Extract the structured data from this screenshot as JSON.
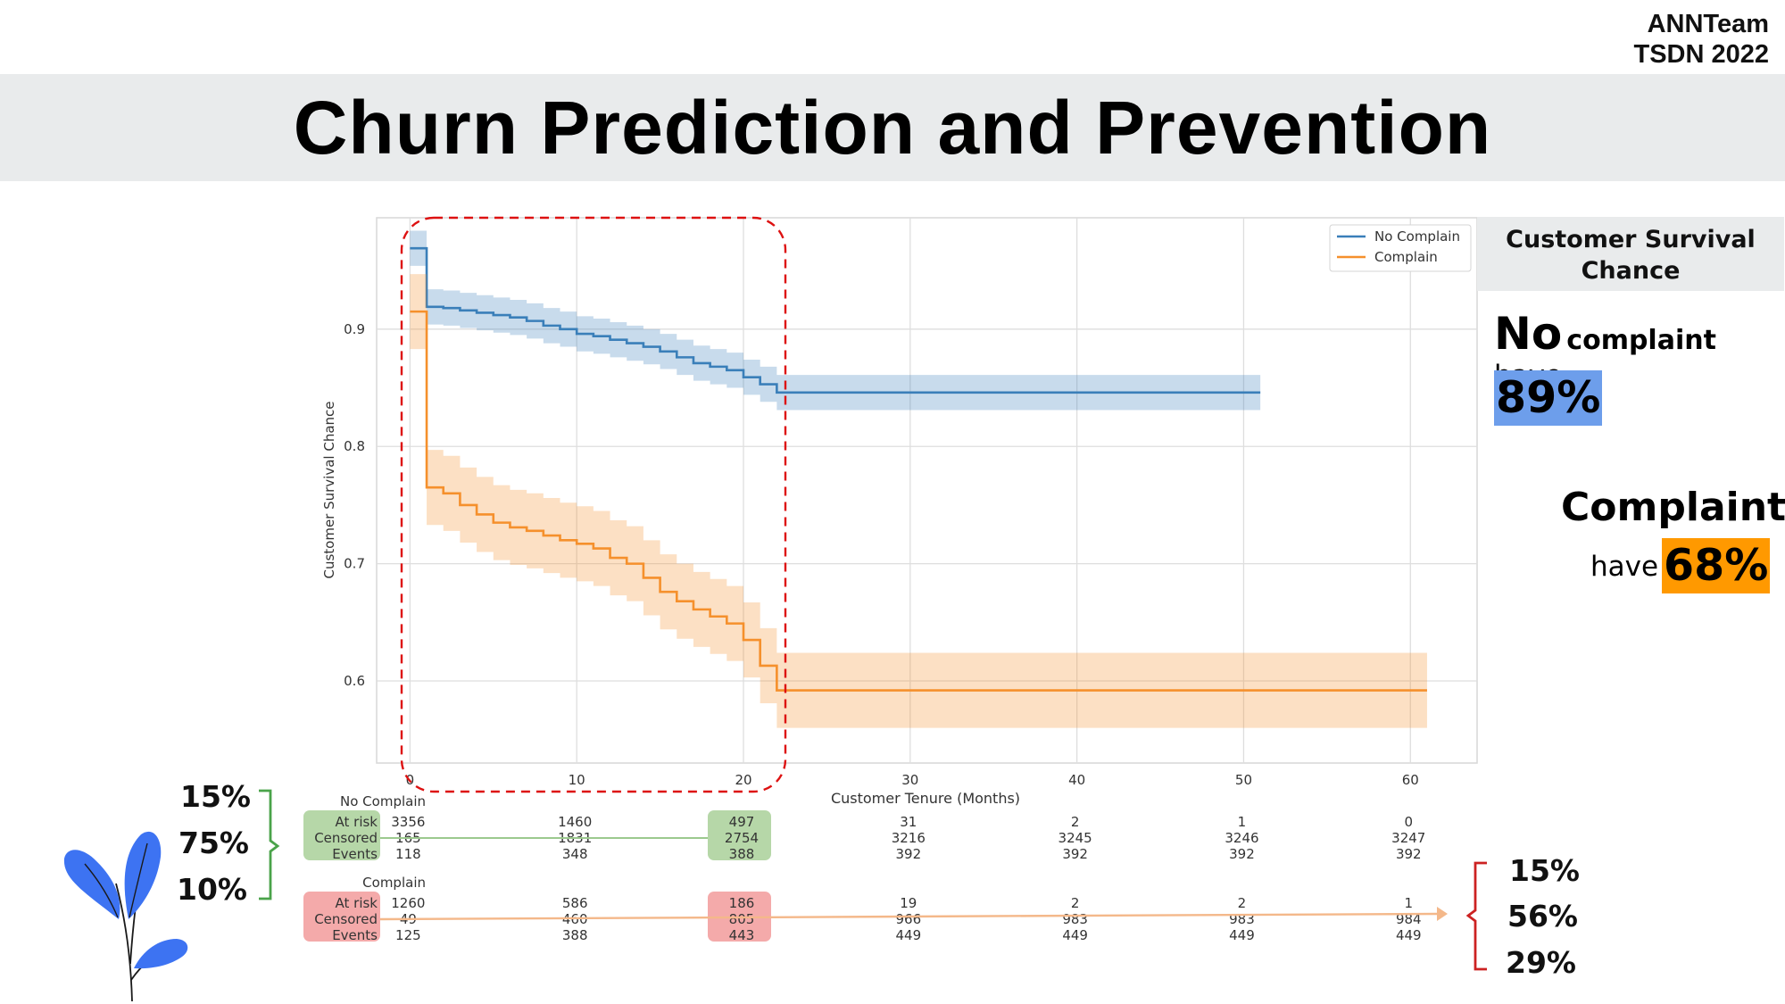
{
  "brand": {
    "line1": "ANNTeam",
    "line2": "TSDN 2022"
  },
  "title": "Churn Prediction and Prevention",
  "side_panel": {
    "header": "Customer Survival Chance",
    "no_complaint": {
      "no": "No",
      "word": "complaint",
      "have": "have",
      "pct": "89%"
    },
    "complaint": {
      "word": "Complaint",
      "have": "have",
      "pct": "68%"
    }
  },
  "left_percentages": [
    "15%",
    "75%",
    "10%"
  ],
  "right_percentages": [
    "15%",
    "56%",
    "29%"
  ],
  "colors": {
    "no_complain": "#3a7fb9",
    "complain": "#f5902c",
    "green_box": "#b6d7a8",
    "red_box": "#f4aaaa",
    "highlight": "#dd1111"
  },
  "chart_data": {
    "type": "line",
    "xlabel": "Customer Tenure (Months)",
    "ylabel": "Customer Survival Chance",
    "xlim": [
      -2,
      64
    ],
    "ylim": [
      0.53,
      0.995
    ],
    "x_ticks": [
      0,
      10,
      20,
      30,
      40,
      50,
      60
    ],
    "y_ticks": [
      0.6,
      0.7,
      0.8,
      0.9
    ],
    "grid": true,
    "legend_position": "top-right",
    "series": [
      {
        "name": "No Complain",
        "points": [
          [
            0,
            0.969
          ],
          [
            1,
            0.919
          ],
          [
            2,
            0.918
          ],
          [
            3,
            0.916
          ],
          [
            4,
            0.914
          ],
          [
            5,
            0.912
          ],
          [
            6,
            0.91
          ],
          [
            7,
            0.907
          ],
          [
            8,
            0.903
          ],
          [
            9,
            0.9
          ],
          [
            10,
            0.896
          ],
          [
            11,
            0.894
          ],
          [
            12,
            0.891
          ],
          [
            13,
            0.888
          ],
          [
            14,
            0.885
          ],
          [
            15,
            0.881
          ],
          [
            16,
            0.876
          ],
          [
            17,
            0.871
          ],
          [
            18,
            0.868
          ],
          [
            19,
            0.865
          ],
          [
            20,
            0.859
          ],
          [
            21,
            0.853
          ],
          [
            22,
            0.846
          ],
          [
            51,
            0.846
          ]
        ],
        "ci": 0.015
      },
      {
        "name": "Complain",
        "points": [
          [
            0,
            0.915
          ],
          [
            1,
            0.765
          ],
          [
            2,
            0.76
          ],
          [
            3,
            0.75
          ],
          [
            4,
            0.742
          ],
          [
            5,
            0.735
          ],
          [
            6,
            0.731
          ],
          [
            7,
            0.728
          ],
          [
            8,
            0.724
          ],
          [
            9,
            0.72
          ],
          [
            10,
            0.717
          ],
          [
            11,
            0.713
          ],
          [
            12,
            0.705
          ],
          [
            13,
            0.7
          ],
          [
            14,
            0.688
          ],
          [
            15,
            0.676
          ],
          [
            16,
            0.668
          ],
          [
            17,
            0.661
          ],
          [
            18,
            0.655
          ],
          [
            19,
            0.649
          ],
          [
            20,
            0.635
          ],
          [
            21,
            0.613
          ],
          [
            22,
            0.592
          ],
          [
            61,
            0.592
          ]
        ],
        "ci": 0.032
      }
    ],
    "at_risk_table": {
      "x_positions": [
        0,
        10,
        20,
        30,
        40,
        50,
        60
      ],
      "groups": [
        {
          "name": "No Complain",
          "rows": [
            {
              "label": "At risk",
              "values": [
                "3356",
                "1460",
                "497",
                "31",
                "2",
                "1",
                "0"
              ]
            },
            {
              "label": "Censored",
              "values": [
                "165",
                "1831",
                "2754",
                "3216",
                "3245",
                "3246",
                "3247"
              ]
            },
            {
              "label": "Events",
              "values": [
                "118",
                "348",
                "388",
                "392",
                "392",
                "392",
                "392"
              ]
            }
          ]
        },
        {
          "name": "Complain",
          "rows": [
            {
              "label": "At risk",
              "values": [
                "1260",
                "586",
                "186",
                "19",
                "2",
                "2",
                "1"
              ]
            },
            {
              "label": "Censored",
              "values": [
                "49",
                "460",
                "805",
                "966",
                "983",
                "983",
                "984"
              ]
            },
            {
              "label": "Events",
              "values": [
                "125",
                "388",
                "443",
                "449",
                "449",
                "449",
                "449"
              ]
            }
          ]
        }
      ]
    }
  }
}
